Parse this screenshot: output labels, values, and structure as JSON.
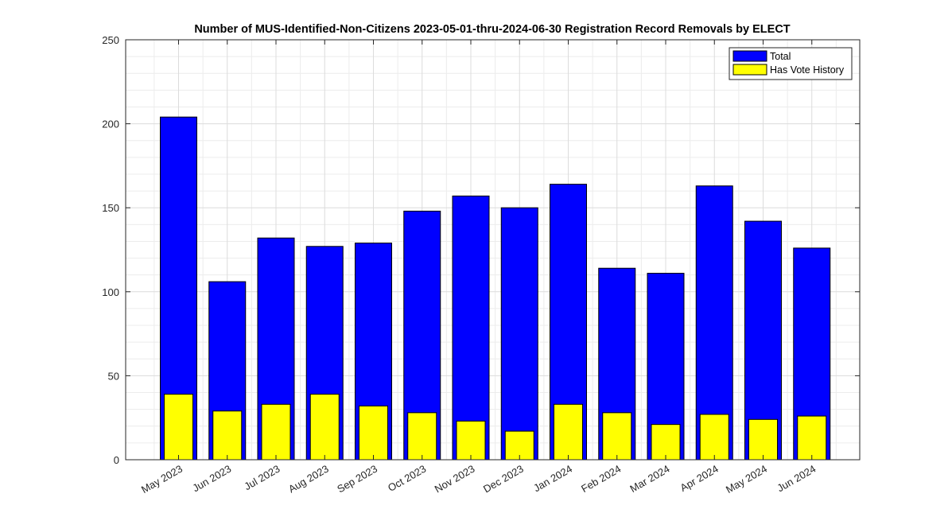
{
  "chart_data": {
    "type": "bar",
    "title": "Number of MUS-Identified-Non-Citizens 2023-05-01-thru-2024-06-30 Registration Record Removals by ELECT",
    "xlabel": "",
    "ylabel": "",
    "categories": [
      "May 2023",
      "Jun 2023",
      "Jul 2023",
      "Aug 2023",
      "Sep 2023",
      "Oct 2023",
      "Nov 2023",
      "Dec 2023",
      "Jan 2024",
      "Feb 2024",
      "Mar 2024",
      "Apr 2024",
      "May 2024",
      "Jun 2024"
    ],
    "series": [
      {
        "name": "Total",
        "color": "#0000ff",
        "values": [
          204,
          106,
          132,
          127,
          129,
          148,
          157,
          150,
          164,
          114,
          111,
          163,
          142,
          126
        ]
      },
      {
        "name": "Has Vote History",
        "color": "#ffff00",
        "values": [
          39,
          29,
          33,
          39,
          32,
          28,
          23,
          17,
          33,
          28,
          21,
          27,
          24,
          26
        ]
      }
    ],
    "ylim": [
      0,
      250
    ],
    "yticks": [
      0,
      50,
      100,
      150,
      200,
      250
    ],
    "grid": true,
    "minor_grid": true,
    "legend_position": "top-right"
  }
}
